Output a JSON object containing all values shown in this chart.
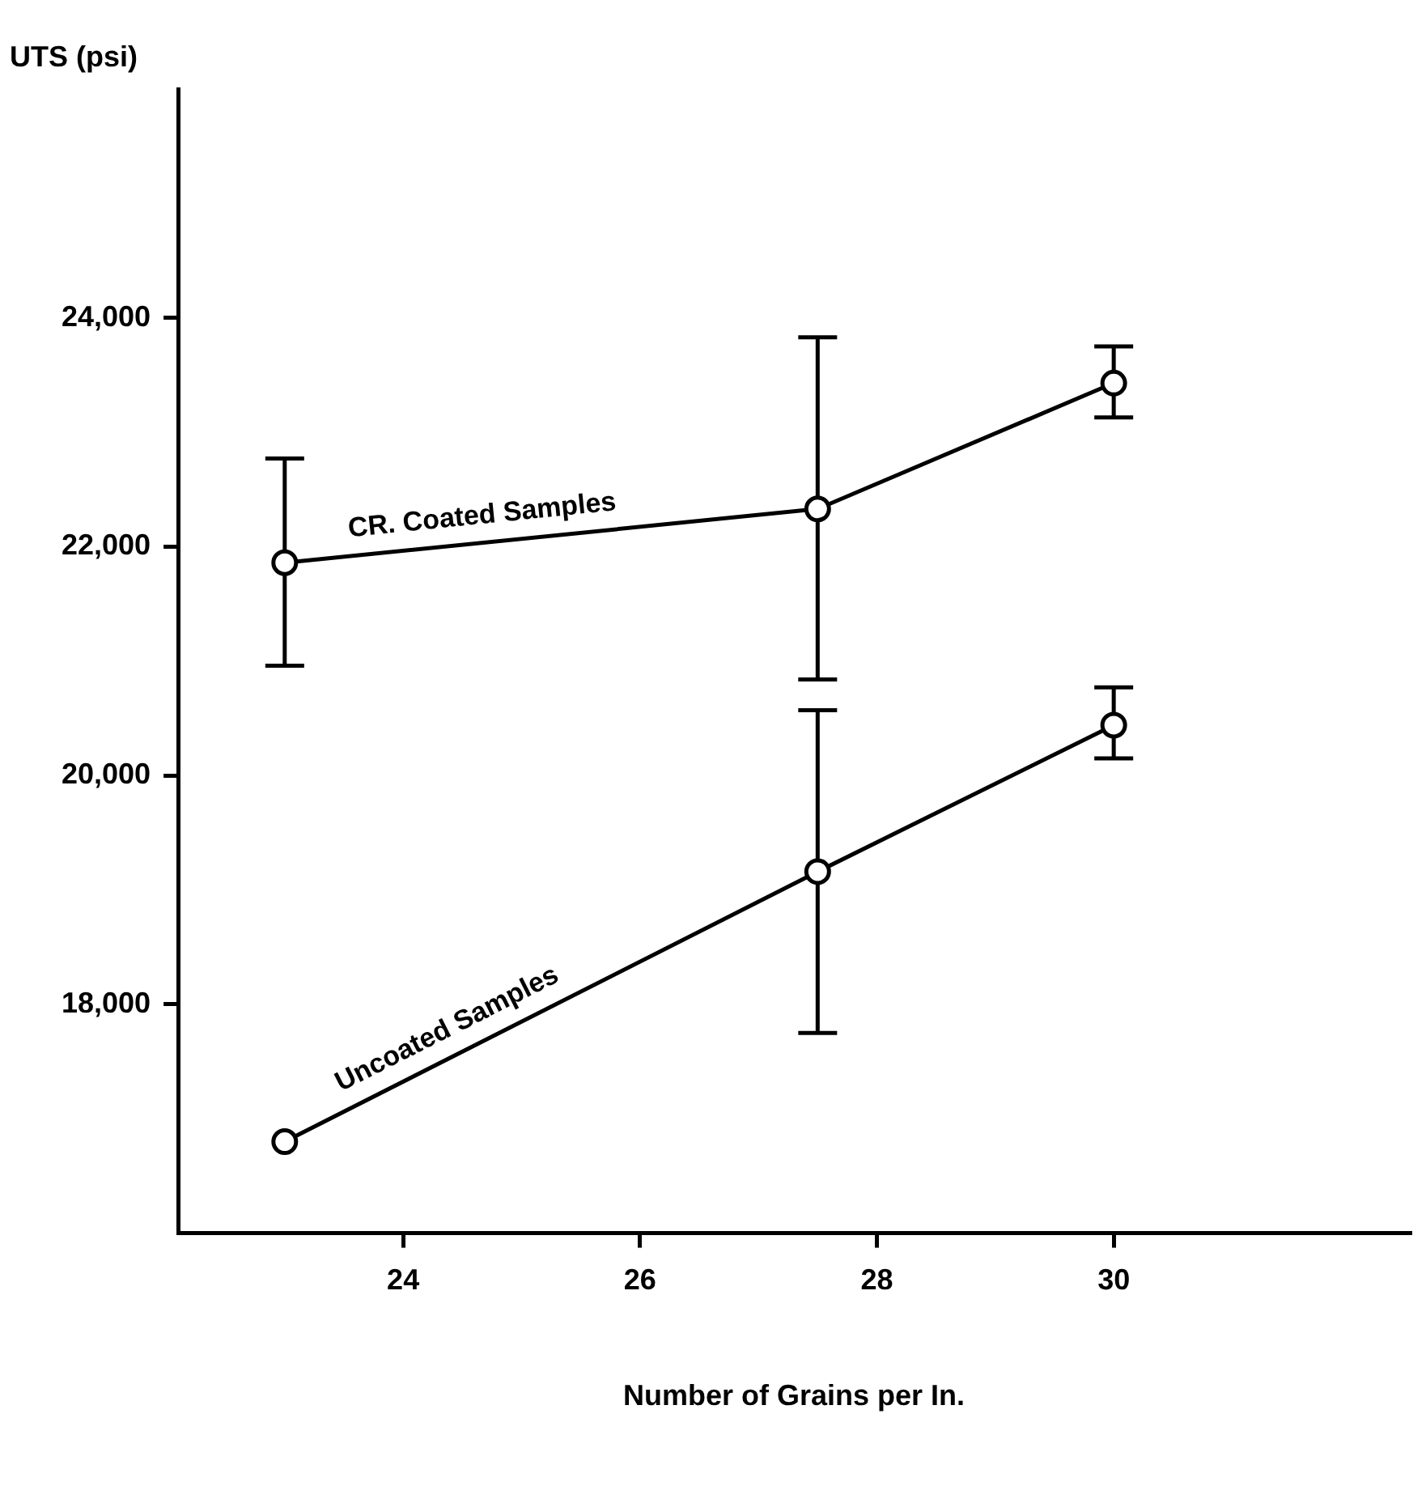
{
  "chart_data": {
    "type": "line",
    "xlabel": "Number of Grains per In.",
    "ylabel": "UTS (psi)",
    "xlim": [
      22.1,
      32.5
    ],
    "xticks": [
      24,
      26,
      28,
      30
    ],
    "ylim": [
      16000,
      26000
    ],
    "yticks": [
      {
        "value": 18000,
        "label": "18,000"
      },
      {
        "value": 20000,
        "label": "20,000"
      },
      {
        "value": 22000,
        "label": "22,000"
      },
      {
        "value": 24000,
        "label": "24,000"
      }
    ],
    "x": [
      23,
      27.5,
      30
    ],
    "grid": false,
    "legend": false,
    "marker": "circle",
    "line_style": "solid",
    "series": [
      {
        "name": "CR. Coated Samples",
        "color": "#000000",
        "values": [
          21860,
          22330,
          23430
        ],
        "errors": [
          [
            20960,
            22770
          ],
          [
            20840,
            23830
          ],
          [
            23130,
            23750
          ]
        ]
      },
      {
        "name": "Uncoated Samples",
        "color": "#000000",
        "values": [
          16800,
          19160,
          20440
        ],
        "errors": [
          null,
          [
            17750,
            20570
          ],
          [
            20150,
            20770
          ]
        ]
      }
    ]
  }
}
